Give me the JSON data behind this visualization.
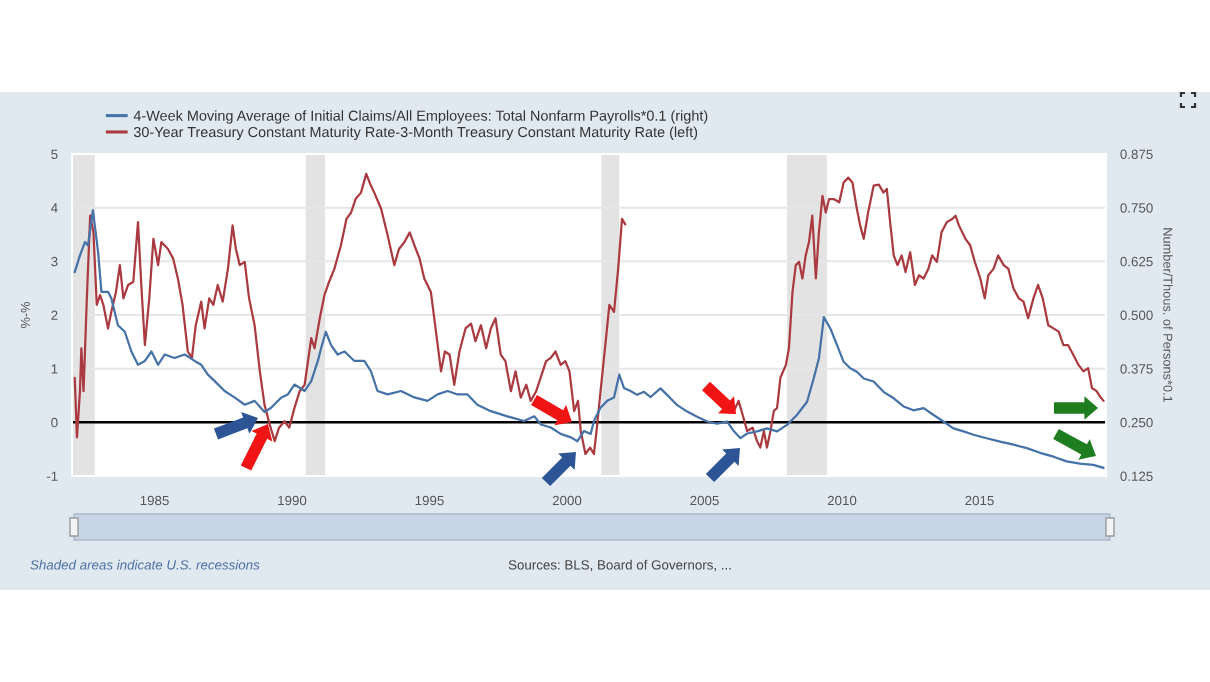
{
  "chart_data": {
    "type": "line",
    "xlim": [
      1982.0,
      2019.6
    ],
    "xticks": [
      1985,
      1990,
      1995,
      2000,
      2005,
      2010,
      2015
    ],
    "ylim": [
      -1,
      5
    ],
    "yticks": [
      -1,
      0,
      1,
      2,
      3,
      4,
      5
    ],
    "ylabel": "%-%",
    "y2lim": [
      0.125,
      0.875
    ],
    "y2ticks": [
      0.125,
      {
        "value": 0.25,
        "label": "0.250"
      },
      0.375,
      {
        "value": 0.5,
        "label": "0.500"
      },
      0.625,
      {
        "value": 0.75,
        "label": "0.750"
      },
      0.875
    ],
    "y2label": "Number/Thous. of Persons*0.1",
    "grid": "y",
    "legend": "top left",
    "series": [
      {
        "name": "4-Week Moving Average of Initial Claims/All Employees: Total Nonfarm Payrolls*0.1 (right)",
        "color": "#4572a7",
        "axis": "y2",
        "x": [
          1982.1,
          1982.29,
          1982.47,
          1982.58,
          1982.76,
          1982.95,
          1983.07,
          1983.31,
          1983.43,
          1983.67,
          1983.92,
          1984.16,
          1984.4,
          1984.65,
          1984.89,
          1985.13,
          1985.37,
          1985.73,
          1986.1,
          1986.46,
          1986.7,
          1986.94,
          1987.19,
          1987.55,
          1987.91,
          1988.28,
          1988.64,
          1989.0,
          1989.24,
          1989.61,
          1989.85,
          1990.09,
          1990.46,
          1990.7,
          1990.94,
          1991.06,
          1991.23,
          1991.42,
          1991.66,
          1991.91,
          1992.27,
          1992.63,
          1992.87,
          1993.11,
          1993.48,
          1993.96,
          1994.45,
          1994.93,
          1995.29,
          1995.66,
          1996.02,
          1996.38,
          1996.74,
          1997.23,
          1997.83,
          1998.44,
          1998.81,
          1999.05,
          1999.41,
          1999.77,
          2000.14,
          2000.38,
          2000.62,
          2000.86,
          2000.98,
          2001.22,
          2001.46,
          2001.71,
          2001.9,
          2002.07,
          2002.31,
          2002.55,
          2002.8,
          2003.04,
          2003.4,
          2003.64,
          2004.01,
          2004.37,
          2004.73,
          2005.1,
          2005.46,
          2005.82,
          2006.07,
          2006.31,
          2006.55,
          2006.91,
          2007.27,
          2007.64,
          2008.0,
          2008.36,
          2008.73,
          2008.97,
          2009.16,
          2009.34,
          2009.58,
          2009.82,
          2010.06,
          2010.3,
          2010.54,
          2010.79,
          2011.15,
          2011.51,
          2011.88,
          2012.24,
          2012.6,
          2012.97,
          2013.33,
          2013.69,
          2014.05,
          2014.42,
          2014.78,
          2015.26,
          2015.75,
          2016.24,
          2016.72,
          2017.2,
          2017.69,
          2018.17,
          2018.65,
          2019.14,
          2019.51
        ],
        "values": [
          0.6,
          0.639,
          0.67,
          0.662,
          0.744,
          0.646,
          0.554,
          0.554,
          0.539,
          0.476,
          0.461,
          0.415,
          0.384,
          0.393,
          0.415,
          0.384,
          0.408,
          0.4,
          0.408,
          0.393,
          0.384,
          0.361,
          0.346,
          0.323,
          0.308,
          0.291,
          0.3,
          0.274,
          0.284,
          0.308,
          0.315,
          0.338,
          0.323,
          0.346,
          0.393,
          0.423,
          0.461,
          0.43,
          0.408,
          0.415,
          0.393,
          0.393,
          0.369,
          0.323,
          0.315,
          0.323,
          0.308,
          0.3,
          0.315,
          0.323,
          0.315,
          0.315,
          0.291,
          0.276,
          0.264,
          0.253,
          0.264,
          0.245,
          0.238,
          0.223,
          0.215,
          0.206,
          0.23,
          0.223,
          0.253,
          0.284,
          0.3,
          0.308,
          0.361,
          0.33,
          0.323,
          0.314,
          0.321,
          0.309,
          0.329,
          0.314,
          0.29,
          0.275,
          0.263,
          0.252,
          0.247,
          0.252,
          0.229,
          0.213,
          0.224,
          0.229,
          0.236,
          0.229,
          0.244,
          0.267,
          0.298,
          0.352,
          0.399,
          0.495,
          0.468,
          0.43,
          0.391,
          0.376,
          0.368,
          0.352,
          0.345,
          0.321,
          0.306,
          0.287,
          0.278,
          0.283,
          0.267,
          0.252,
          0.236,
          0.229,
          0.221,
          0.213,
          0.205,
          0.198,
          0.19,
          0.179,
          0.17,
          0.159,
          0.154,
          0.151,
          0.144
        ]
      },
      {
        "name": "30-Year Treasury Constant Maturity Rate-3-Month Treasury Constant Maturity Rate (left)",
        "color": "#aa3a3f",
        "axis": "y",
        "x": [
          1982.1,
          1982.18,
          1982.29,
          1982.34,
          1982.42,
          1982.54,
          1982.66,
          1982.78,
          1982.9,
          1983.02,
          1983.14,
          1983.31,
          1983.43,
          1983.6,
          1983.74,
          1983.87,
          1984.04,
          1984.23,
          1984.4,
          1984.52,
          1984.65,
          1984.81,
          1984.96,
          1985.13,
          1985.25,
          1985.49,
          1985.68,
          1985.85,
          1986.02,
          1986.21,
          1986.36,
          1986.5,
          1986.7,
          1986.82,
          1986.99,
          1987.14,
          1987.3,
          1987.48,
          1987.67,
          1987.84,
          1987.96,
          1988.1,
          1988.28,
          1988.44,
          1988.64,
          1988.83,
          1989.0,
          1989.19,
          1989.37,
          1989.53,
          1989.73,
          1989.9,
          1990.09,
          1990.28,
          1990.46,
          1990.7,
          1990.82,
          1991.01,
          1991.18,
          1991.35,
          1991.54,
          1991.78,
          1991.98,
          1992.15,
          1992.31,
          1992.51,
          1992.7,
          1992.82,
          1992.99,
          1993.24,
          1993.48,
          1993.72,
          1993.89,
          1994.09,
          1994.28,
          1994.45,
          1994.64,
          1994.81,
          1995.05,
          1995.22,
          1995.42,
          1995.56,
          1995.73,
          1995.9,
          1996.09,
          1996.31,
          1996.51,
          1996.67,
          1996.87,
          1997.06,
          1997.23,
          1997.4,
          1997.59,
          1997.76,
          1997.96,
          1998.13,
          1998.32,
          1998.52,
          1998.68,
          1998.88,
          1999.24,
          1999.41,
          1999.58,
          1999.77,
          1999.94,
          2000.09,
          2000.26,
          2000.4,
          2000.5,
          2000.67,
          2000.84,
          2000.98,
          2001.1,
          2001.22,
          2001.42,
          2001.54,
          2001.71,
          2001.86,
          2002.0,
          2002.12,
          2004.0,
          2006.07,
          2006.24,
          2006.38,
          2006.55,
          2006.75,
          2006.91,
          2007.03,
          2007.16,
          2007.27,
          2007.4,
          2007.52,
          2007.64,
          2007.76,
          2007.96,
          2008.07,
          2008.2,
          2008.32,
          2008.44,
          2008.56,
          2008.68,
          2008.8,
          2008.92,
          2009.05,
          2009.16,
          2009.29,
          2009.41,
          2009.53,
          2009.7,
          2009.9,
          2010.06,
          2010.23,
          2010.38,
          2010.54,
          2010.66,
          2010.79,
          2010.95,
          2011.15,
          2011.34,
          2011.51,
          2011.63,
          2011.75,
          2011.88,
          2012.02,
          2012.17,
          2012.31,
          2012.48,
          2012.65,
          2012.8,
          2012.97,
          2013.14,
          2013.28,
          2013.45,
          2013.62,
          2013.81,
          2014.01,
          2014.13,
          2014.25,
          2014.49,
          2014.66,
          2014.83,
          2015.03,
          2015.19,
          2015.32,
          2015.51,
          2015.68,
          2015.88,
          2016.05,
          2016.24,
          2016.43,
          2016.6,
          2016.77,
          2016.96,
          2017.13,
          2017.3,
          2017.5,
          2017.69,
          2017.88,
          2018.05,
          2018.22,
          2018.41,
          2018.6,
          2018.78,
          2018.95,
          2019.09,
          2019.26,
          2019.38,
          2019.51
        ],
        "values": [
          0.83,
          -0.28,
          0.58,
          1.38,
          0.58,
          2.31,
          3.85,
          3.54,
          2.19,
          2.37,
          2.19,
          1.75,
          2.06,
          2.43,
          2.93,
          2.31,
          2.56,
          2.62,
          3.73,
          2.56,
          1.44,
          2.31,
          3.42,
          2.93,
          3.36,
          3.23,
          3.05,
          2.68,
          2.19,
          1.32,
          1.2,
          1.81,
          2.25,
          1.75,
          2.31,
          2.19,
          2.56,
          2.25,
          2.86,
          3.67,
          3.23,
          2.93,
          2.99,
          2.31,
          1.81,
          0.95,
          0.33,
          -0.04,
          -0.35,
          -0.1,
          0.02,
          -0.1,
          0.27,
          0.58,
          0.7,
          1.57,
          1.38,
          1.94,
          2.37,
          2.62,
          2.86,
          3.3,
          3.79,
          3.91,
          4.16,
          4.28,
          4.63,
          4.47,
          4.28,
          3.98,
          3.48,
          2.93,
          3.23,
          3.36,
          3.54,
          3.3,
          3.05,
          2.68,
          2.43,
          1.75,
          0.95,
          1.32,
          1.26,
          0.7,
          1.32,
          1.75,
          1.84,
          1.51,
          1.81,
          1.38,
          1.75,
          1.94,
          1.26,
          1.14,
          0.58,
          0.95,
          0.46,
          0.7,
          0.4,
          0.58,
          1.14,
          1.2,
          1.32,
          1.07,
          1.14,
          0.95,
          0.21,
          0.4,
          -0.16,
          -0.59,
          -0.47,
          -0.59,
          -0.04,
          0.58,
          1.57,
          2.19,
          2.06,
          2.86,
          3.79,
          3.69,
          null,
          0.21,
          0.4,
          0.15,
          -0.16,
          -0.1,
          -0.35,
          -0.47,
          -0.16,
          -0.47,
          -0.16,
          0.21,
          0.27,
          0.83,
          1.07,
          1.38,
          2.43,
          2.93,
          2.99,
          2.68,
          3.11,
          3.36,
          3.85,
          2.68,
          3.54,
          4.22,
          3.91,
          4.16,
          4.16,
          4.1,
          4.47,
          4.56,
          4.47,
          3.98,
          3.67,
          3.42,
          3.91,
          4.41,
          4.43,
          4.28,
          4.35,
          3.73,
          3.11,
          2.93,
          3.11,
          2.8,
          3.17,
          2.56,
          2.74,
          2.68,
          2.86,
          3.11,
          2.99,
          3.54,
          3.73,
          3.79,
          3.85,
          3.67,
          3.42,
          3.3,
          2.99,
          2.68,
          2.31,
          2.74,
          2.86,
          3.11,
          2.93,
          2.86,
          2.49,
          2.31,
          2.25,
          1.94,
          2.31,
          2.56,
          2.31,
          1.81,
          1.75,
          1.69,
          1.44,
          1.44,
          1.26,
          1.07,
          0.95,
          1.01,
          0.64,
          0.58,
          0.48,
          0.4
        ]
      }
    ],
    "ref_lines": [
      {
        "axis": "y",
        "value": 0,
        "color": "#000000"
      }
    ],
    "bands": [
      {
        "axis": "x",
        "from": 1982.0,
        "to": 1982.83,
        "color": "#e3e3e3"
      },
      {
        "axis": "x",
        "from": 1990.5,
        "to": 1991.2,
        "color": "#e3e3e3"
      },
      {
        "axis": "x",
        "from": 2001.25,
        "to": 2001.9,
        "color": "#e3e3e3"
      },
      {
        "axis": "x",
        "from": 2008.0,
        "to": 2009.45,
        "color": "#e3e3e3"
      }
    ],
    "annotations": [
      "Shaded areas indicate U.S. recessions",
      "Sources: BLS, Board of Governors, ..."
    ]
  }
}
